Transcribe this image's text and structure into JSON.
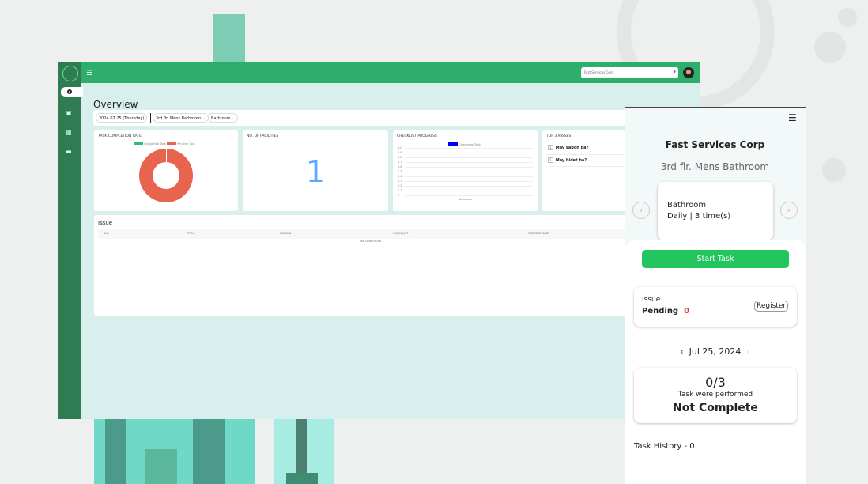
{
  "dashboard": {
    "company_select": "Fast Services Corp",
    "page_title": "Overview",
    "filters": {
      "date": "2024.07.25 (Thursday)",
      "facility": "3rd flr. Mens Bathroom",
      "category": "Bathroom"
    },
    "cards": {
      "completion": {
        "title": "TASK COMPLETION RATE",
        "legend": [
          "Completed Task",
          "Pending Task"
        ],
        "completed": 0,
        "pending": 3,
        "colors": {
          "completed": "#2ebd7d",
          "pending": "#e8644e"
        }
      },
      "facilities": {
        "title": "NO. OF FACILITIES",
        "value": "1"
      },
      "checklist": {
        "title": "CHECKLIST PROGRESS",
        "legend": "Completed Task",
        "y_ticks": [
          "1.0",
          "0.9",
          "0.8",
          "0.7",
          "0.6",
          "0.5",
          "0.4",
          "0.3",
          "0.2",
          "0.1",
          "0"
        ],
        "category": "Bathroom"
      },
      "misses": {
        "title": "TOP 3 MISSES",
        "items": [
          {
            "rank": "1",
            "text": "May sabon ba?"
          },
          {
            "rank": "1",
            "text": "May bidet ba?"
          }
        ]
      }
    },
    "issue": {
      "title": "Issue",
      "columns": [
        "NO.",
        "TITLE",
        "DETAILS",
        "CHECKLIST",
        "CREATED DATE"
      ],
      "empty": "No Data Found"
    }
  },
  "mobile": {
    "company": "Fast Services Corp",
    "facility": "3rd flr. Mens Bathroom",
    "category": "Bathroom",
    "schedule": "Daily | 3 time(s)",
    "start_task": "Start Task",
    "issue_label": "Issue",
    "pending_label": "Pending",
    "pending_count": "0",
    "register": "Register",
    "date": "Jul 25, 2024",
    "progress": "0/3",
    "performed": "Task were performed",
    "status": "Not Complete",
    "history": "Task History - 0"
  },
  "colors": {
    "topbar": "#2eae6b",
    "sidebar": "#2f7c52",
    "accent": "#22c55e",
    "pending": "#e53935"
  }
}
